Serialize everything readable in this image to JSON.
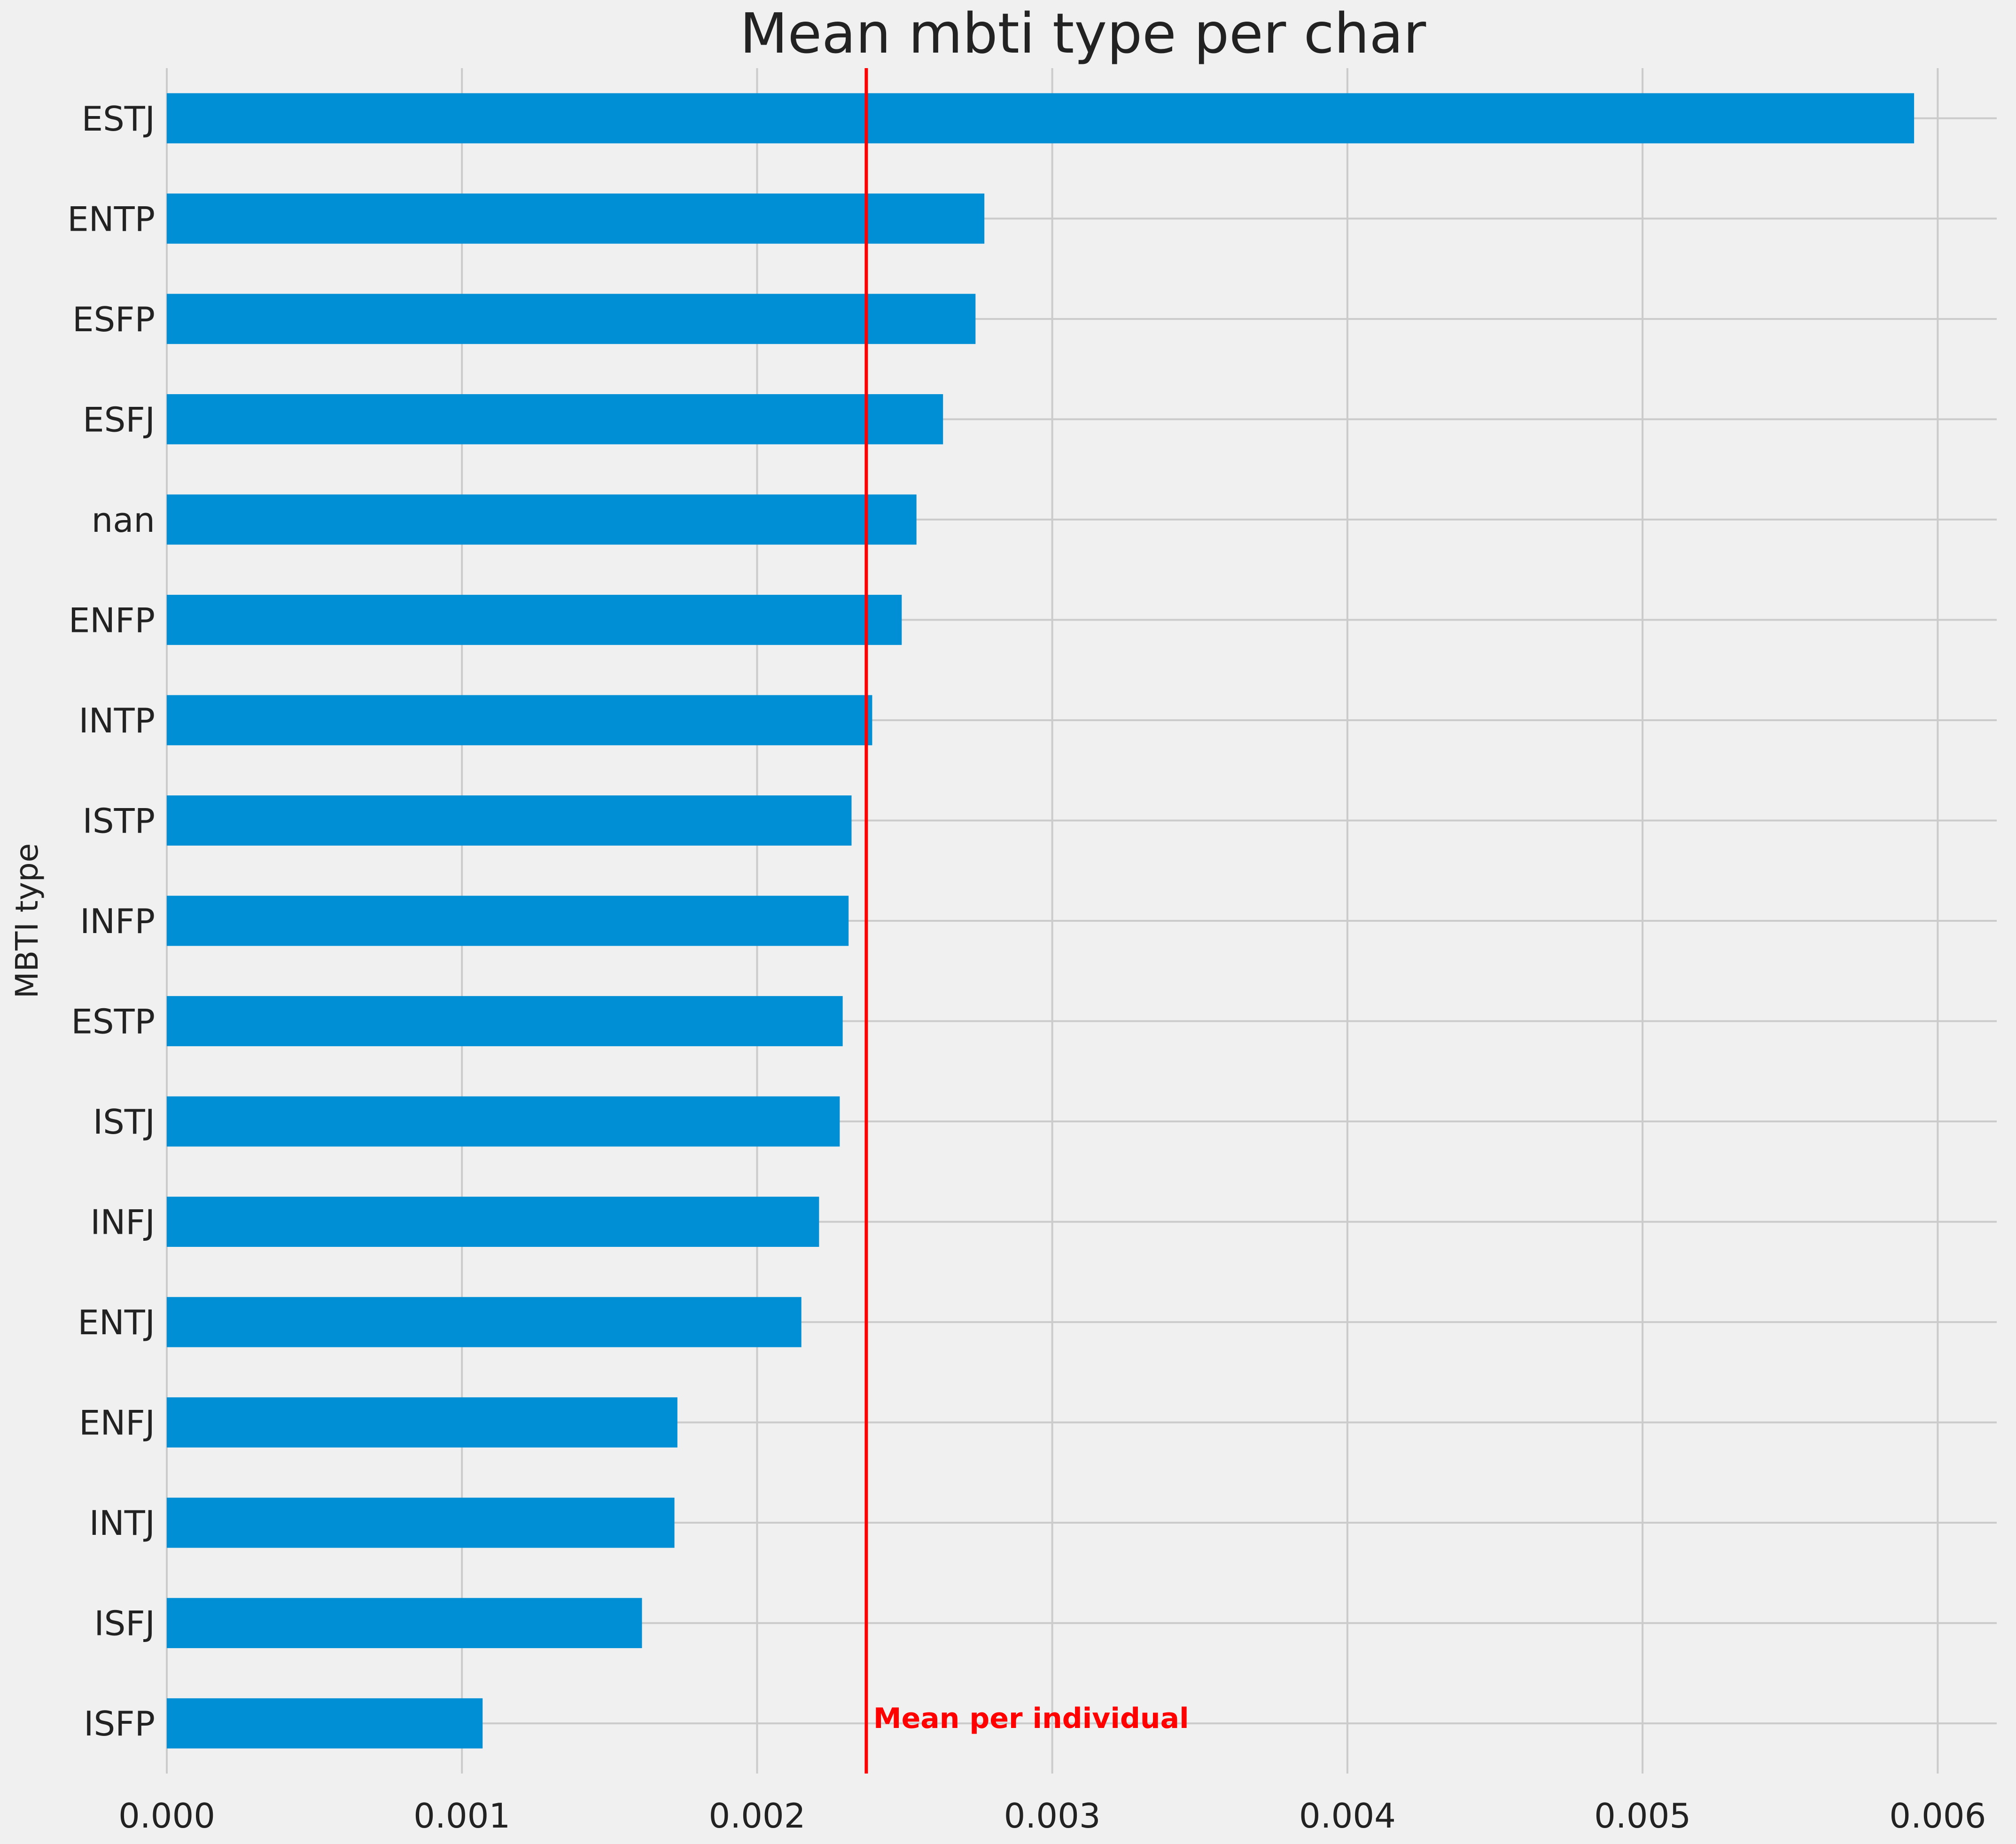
{
  "chart_data": {
    "type": "bar",
    "orientation": "horizontal",
    "title": "Mean mbti type per char",
    "xlabel": "",
    "ylabel": "MBTI type",
    "categories": [
      "ESTJ",
      "ENTP",
      "ESFP",
      "ESFJ",
      "nan",
      "ENFP",
      "INTP",
      "ISTP",
      "INFP",
      "ESTP",
      "ISTJ",
      "INFJ",
      "ENTJ",
      "ENFJ",
      "INTJ",
      "ISFJ",
      "ISFP"
    ],
    "values": [
      0.00592,
      0.00277,
      0.00274,
      0.00263,
      0.00254,
      0.00249,
      0.00239,
      0.00232,
      0.00231,
      0.00229,
      0.00228,
      0.00221,
      0.00215,
      0.00173,
      0.00172,
      0.00161,
      0.00107
    ],
    "xlim": [
      0,
      0.0062
    ],
    "xticks": [
      "0.000",
      "0.001",
      "0.002",
      "0.003",
      "0.004",
      "0.005",
      "0.006"
    ],
    "xtick_values": [
      0,
      0.001,
      0.002,
      0.003,
      0.004,
      0.005,
      0.006
    ],
    "grid": true,
    "legend": "none",
    "reference_line": {
      "value": 0.00237,
      "label": "Mean per individual",
      "color": "#ff0000"
    },
    "bar_color": "#008fd5"
  }
}
